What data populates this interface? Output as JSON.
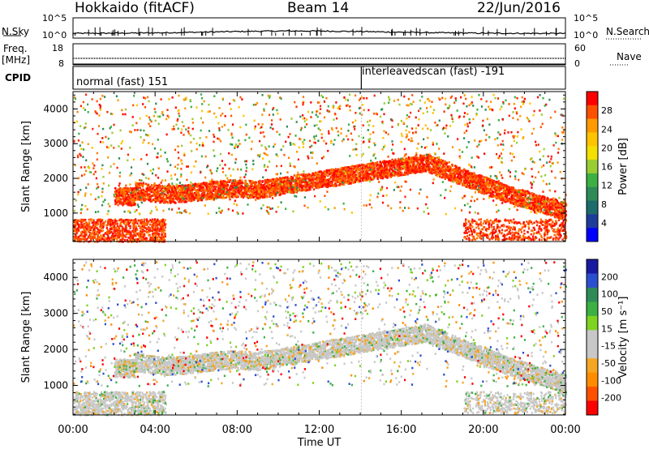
{
  "header": {
    "station": "Hokkaido (fitACF)",
    "beam": "Beam 14",
    "date": "22/Jun/2016"
  },
  "left_labels": {
    "nsky": "N.Sky",
    "freq": "Freq.",
    "freq_unit": "[MHz]",
    "cpid": "CPID"
  },
  "right_labels": {
    "nsearch": "N.Search",
    "nave": "Nave"
  },
  "noise_panel": {
    "ticks_left": [
      "10^5",
      "10^0"
    ],
    "ticks_right": [
      "10^5",
      "10^0"
    ]
  },
  "freq_panel": {
    "ticks_left": [
      "18",
      "8"
    ],
    "ticks_right": [
      "60",
      "0"
    ]
  },
  "cpid_segments": [
    {
      "label": "normal (fast) 151",
      "start_hour": 0,
      "end_hour": 14.05
    },
    {
      "label": "interleavedscan (fast) -191",
      "start_hour": 14.05,
      "end_hour": 24
    }
  ],
  "chart_data": [
    {
      "type": "heatmap",
      "name": "power",
      "ylabel": "Slant Range [km]",
      "xlabel": "",
      "x_ticks": [
        "00:00",
        "04:00",
        "08:00",
        "12:00",
        "16:00",
        "20:00",
        "00:00"
      ],
      "y_ticks": [
        1000,
        2000,
        3000,
        4000
      ],
      "xlim_hours": [
        0,
        24
      ],
      "ylim_km": [
        180,
        4500
      ],
      "colorbar": {
        "label": "Power [dB]",
        "ticks": [
          "28",
          "24",
          "20",
          "16",
          "12",
          "8",
          "4"
        ],
        "colors": [
          "#ff0000",
          "#ff5000",
          "#ff9a00",
          "#ffc400",
          "#f2e000",
          "#9acd32",
          "#3cb043",
          "#2e8b57",
          "#1e6b6b",
          "#1e3c9a",
          "#0000ff"
        ]
      }
    },
    {
      "type": "heatmap",
      "name": "velocity",
      "ylabel": "Slant Range [km]",
      "xlabel": "Time UT",
      "x_ticks": [
        "00:00",
        "04:00",
        "08:00",
        "12:00",
        "16:00",
        "20:00",
        "00:00"
      ],
      "y_ticks": [
        1000,
        2000,
        3000,
        4000
      ],
      "xlim_hours": [
        0,
        24
      ],
      "ylim_km": [
        180,
        4500
      ],
      "colorbar": {
        "label": "Velocity [m s⁻¹]",
        "ticks": [
          "200",
          "100",
          "50",
          "15",
          "-15",
          "-50",
          "-100",
          "-200"
        ],
        "colors": [
          "#1a1aa0",
          "#2c4fd0",
          "#2e8b57",
          "#3cb043",
          "#7ed321",
          "#c8c8c8",
          "#c8c8c8",
          "#f5a623",
          "#ff8c00",
          "#ff5000",
          "#ff0000"
        ]
      }
    }
  ],
  "colors": {
    "power_hi": "#ff0000",
    "power_mid": "#ff7a00",
    "power_lo": "#3cb043",
    "velocity_zero": "#c8c8c8",
    "velocity_neg": "#f5a623",
    "velocity_pos": "#3cb043"
  }
}
